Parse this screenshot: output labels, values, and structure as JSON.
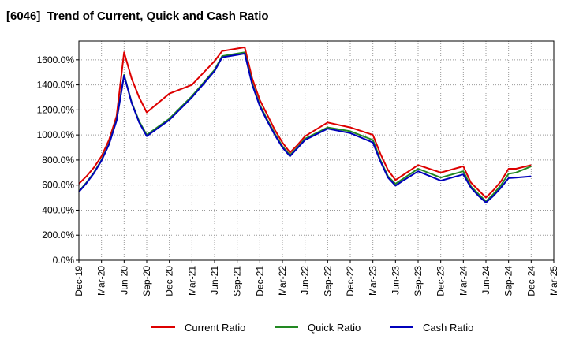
{
  "chart_data": {
    "type": "line",
    "title": "[6046]  Trend of Current, Quick and Cash Ratio",
    "xlabel": "",
    "ylabel": "",
    "ylim": [
      0,
      1750
    ],
    "y_ticks": [
      0,
      200,
      400,
      600,
      800,
      1000,
      1200,
      1400,
      1600
    ],
    "y_tick_labels": [
      "0.0%",
      "200.0%",
      "400.0%",
      "600.0%",
      "800.0%",
      "1000.0%",
      "1200.0%",
      "1400.0%",
      "1600.0%"
    ],
    "x_ticks": [
      "Dec-19",
      "Mar-20",
      "Jun-20",
      "Sep-20",
      "Dec-20",
      "Mar-21",
      "Jun-21",
      "Sep-21",
      "Dec-21",
      "Mar-22",
      "Jun-22",
      "Sep-22",
      "Dec-22",
      "Mar-23",
      "Jun-23",
      "Sep-23",
      "Dec-23",
      "Mar-24",
      "Jun-24",
      "Sep-24",
      "Dec-24",
      "Mar-25"
    ],
    "grid": true,
    "legend_position": "bottom",
    "x_months": [
      0,
      1,
      2,
      3,
      4,
      5,
      6,
      7,
      8,
      9,
      12,
      15,
      18,
      19,
      20,
      21,
      22,
      23,
      24,
      25,
      26,
      27,
      28,
      29,
      30,
      33,
      36,
      39,
      40,
      41,
      42,
      43,
      45,
      48,
      51,
      52,
      53,
      54,
      55,
      56,
      57,
      58,
      60
    ],
    "series": [
      {
        "name": "Current Ratio",
        "color": "#dd0000",
        "values": [
          610,
          670,
          740,
          830,
          960,
          1150,
          1660,
          1450,
          1300,
          1180,
          1330,
          1400,
          1590,
          1670,
          1680,
          1690,
          1700,
          1450,
          1280,
          1160,
          1040,
          940,
          860,
          920,
          990,
          1100,
          1060,
          1000,
          850,
          720,
          640,
          680,
          760,
          700,
          750,
          620,
          560,
          500,
          560,
          630,
          730,
          730,
          760
        ]
      },
      {
        "name": "Quick Ratio",
        "color": "#228822",
        "values": [
          550,
          620,
          700,
          800,
          930,
          1120,
          1480,
          1260,
          1110,
          1000,
          1130,
          1310,
          1520,
          1630,
          1640,
          1650,
          1660,
          1410,
          1240,
          1120,
          1010,
          910,
          840,
          900,
          970,
          1060,
          1030,
          960,
          800,
          670,
          610,
          650,
          730,
          660,
          710,
          590,
          530,
          470,
          530,
          600,
          690,
          700,
          750
        ]
      },
      {
        "name": "Cash Ratio",
        "color": "#0000bb",
        "values": [
          545,
          615,
          695,
          795,
          925,
          1115,
          1475,
          1255,
          1100,
          990,
          1120,
          1300,
          1510,
          1620,
          1630,
          1640,
          1650,
          1400,
          1230,
          1110,
          1000,
          900,
          830,
          895,
          960,
          1050,
          1015,
          940,
          790,
          660,
          595,
          635,
          710,
          635,
          685,
          580,
          515,
          460,
          515,
          580,
          655,
          660,
          670
        ]
      }
    ]
  }
}
